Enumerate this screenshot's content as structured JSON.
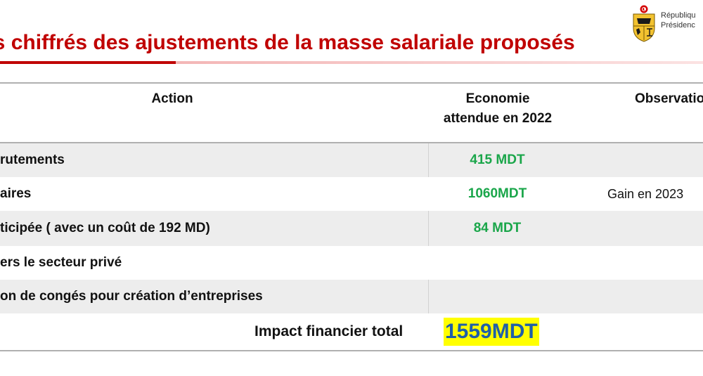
{
  "slide": {
    "title": "ils chiffrés des ajustements de la masse salariale proposés",
    "header_lines": [
      "Républiqu",
      "Présidenc"
    ]
  },
  "table": {
    "headers": {
      "action": "Action",
      "economie_line1": "Economie",
      "economie_line2": "attendue en 2022",
      "observations": "Observatio"
    },
    "rows": [
      {
        "action": "rutements",
        "economie": "415 MDT",
        "observation": ""
      },
      {
        "action": "aires",
        "economie": "1060MDT",
        "observation": "Gain en 2023 "
      },
      {
        "action": "ticipée ( avec un coût de 192 MD)",
        "economie": "84 MDT",
        "observation": ""
      },
      {
        "action": "ers le secteur privé",
        "economie": "",
        "observation": ""
      },
      {
        "action": "on de congés pour création d’entreprises",
        "economie": "",
        "observation": ""
      }
    ],
    "total": {
      "label": "Impact financier total",
      "value": "1559MDT"
    }
  },
  "colors": {
    "title_red": "#c00000",
    "economy_green": "#1aa64a",
    "total_blue": "#1f5fa8",
    "highlight_yellow": "#ffff00",
    "row_shade": "#ededed"
  }
}
